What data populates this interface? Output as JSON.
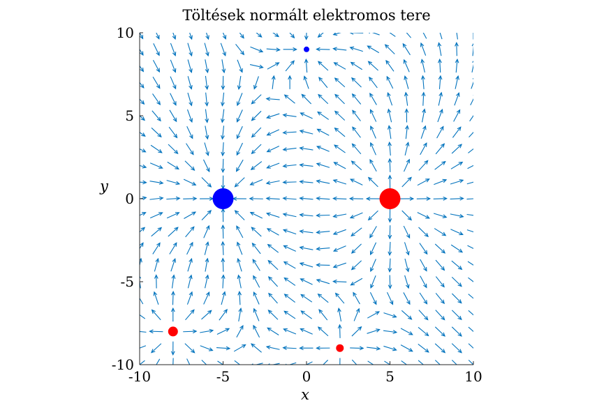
{
  "chart_data": {
    "type": "quiver",
    "title": "Töltések normált elektromos tere",
    "xlabel": "x",
    "ylabel": "y",
    "xlim": [
      -10,
      10
    ],
    "ylim": [
      -10,
      10
    ],
    "xticks": [
      -10,
      -5,
      0,
      5,
      10
    ],
    "yticks": [
      -10,
      -5,
      0,
      5,
      10
    ],
    "xtick_labels": [
      "-10",
      "-5",
      "0",
      "5",
      "10"
    ],
    "ytick_labels": [
      "-10",
      "-5",
      "0",
      "5",
      "10"
    ],
    "grid": false,
    "field_type": "normalized electric field",
    "arrow_grid": {
      "start": -10,
      "end": 10,
      "count": 21
    },
    "charges": [
      {
        "x": -5,
        "y": 0,
        "sign": "negative",
        "magnitude": 3,
        "color": "#0000ff"
      },
      {
        "x": 5,
        "y": 0,
        "sign": "positive",
        "magnitude": 3,
        "color": "#ff0000"
      },
      {
        "x": 0,
        "y": 9,
        "sign": "negative",
        "magnitude": 0.5,
        "color": "#0000ff"
      },
      {
        "x": -8,
        "y": -8,
        "sign": "positive",
        "magnitude": 1,
        "color": "#ff0000"
      },
      {
        "x": 2,
        "y": -9,
        "sign": "positive",
        "magnitude": 0.8,
        "color": "#ff0000"
      }
    ],
    "arrow_color": "#0072bd"
  }
}
